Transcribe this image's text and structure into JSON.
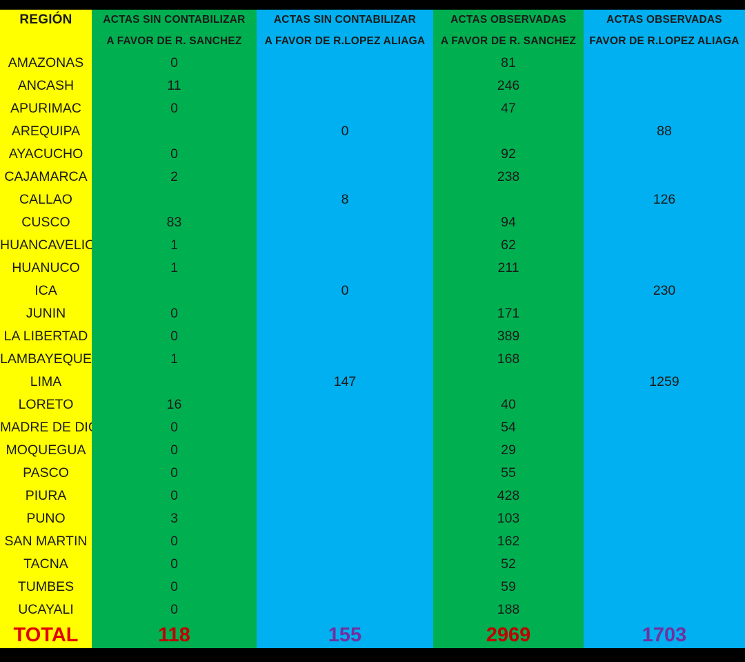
{
  "headers": {
    "region": "REGIÓN",
    "col1_line1": "ACTAS SIN CONTABILIZAR",
    "col1_line2": "A FAVOR DE R. SANCHEZ",
    "col2_line1": "ACTAS SIN CONTABILIZAR",
    "col2_line2": "A FAVOR DE R.LOPEZ ALIAGA",
    "col3_line1": "ACTAS OBSERVADAS",
    "col3_line2": "A FAVOR DE R. SANCHEZ",
    "col4_line1": "ACTAS OBSERVADAS",
    "col4_line2": "FAVOR DE R.LOPEZ ALIAGA"
  },
  "rows": [
    {
      "region": "AMAZONAS",
      "c1": "0",
      "c2": "",
      "c3": "81",
      "c4": ""
    },
    {
      "region": "ANCASH",
      "c1": "11",
      "c2": "",
      "c3": "246",
      "c4": ""
    },
    {
      "region": "APURIMAC",
      "c1": "0",
      "c2": "",
      "c3": "47",
      "c4": ""
    },
    {
      "region": "AREQUIPA",
      "c1": "",
      "c2": "0",
      "c3": "",
      "c4": "88"
    },
    {
      "region": "AYACUCHO",
      "c1": "0",
      "c2": "",
      "c3": "92",
      "c4": ""
    },
    {
      "region": "CAJAMARCA",
      "c1": "2",
      "c2": "",
      "c3": "238",
      "c4": ""
    },
    {
      "region": "CALLAO",
      "c1": "",
      "c2": "8",
      "c3": "",
      "c4": "126"
    },
    {
      "region": "CUSCO",
      "c1": "83",
      "c2": "",
      "c3": "94",
      "c4": ""
    },
    {
      "region": "HUANCAVELICA",
      "c1": "1",
      "c2": "",
      "c3": "62",
      "c4": ""
    },
    {
      "region": "HUANUCO",
      "c1": "1",
      "c2": "",
      "c3": "211",
      "c4": ""
    },
    {
      "region": "ICA",
      "c1": "",
      "c2": "0",
      "c3": "",
      "c4": "230"
    },
    {
      "region": "JUNIN",
      "c1": "0",
      "c2": "",
      "c3": "171",
      "c4": ""
    },
    {
      "region": "LA LIBERTAD",
      "c1": "0",
      "c2": "",
      "c3": "389",
      "c4": ""
    },
    {
      "region": "LAMBAYEQUE",
      "c1": "1",
      "c2": "",
      "c3": "168",
      "c4": ""
    },
    {
      "region": "LIMA",
      "c1": "",
      "c2": "147",
      "c3": "",
      "c4": "1259"
    },
    {
      "region": "LORETO",
      "c1": "16",
      "c2": "",
      "c3": "40",
      "c4": ""
    },
    {
      "region": "MADRE DE DIOS",
      "c1": "0",
      "c2": "",
      "c3": "54",
      "c4": ""
    },
    {
      "region": "MOQUEGUA",
      "c1": "0",
      "c2": "",
      "c3": "29",
      "c4": ""
    },
    {
      "region": "PASCO",
      "c1": "0",
      "c2": "",
      "c3": "55",
      "c4": ""
    },
    {
      "region": "PIURA",
      "c1": "0",
      "c2": "",
      "c3": "428",
      "c4": ""
    },
    {
      "region": "PUNO",
      "c1": "3",
      "c2": "",
      "c3": "103",
      "c4": ""
    },
    {
      "region": "SAN MARTIN",
      "c1": "0",
      "c2": "",
      "c3": "162",
      "c4": ""
    },
    {
      "region": "TACNA",
      "c1": "0",
      "c2": "",
      "c3": "52",
      "c4": ""
    },
    {
      "region": "TUMBES",
      "c1": "0",
      "c2": "",
      "c3": "59",
      "c4": ""
    },
    {
      "region": "UCAYALI",
      "c1": "0",
      "c2": "",
      "c3": "188",
      "c4": ""
    }
  ],
  "totals": {
    "label": "TOTAL",
    "c1": "118",
    "c2": "155",
    "c3": "2969",
    "c4": "1703"
  },
  "colors": {
    "region_bg": "#ffff00",
    "sanchez_bg": "#00b050",
    "lopez_aliaga_bg": "#00b0f0",
    "total_label": "#e00000",
    "sanchez_total": "#c00000",
    "lopez_aliaga_total": "#7030a0",
    "frame": "#000000"
  }
}
